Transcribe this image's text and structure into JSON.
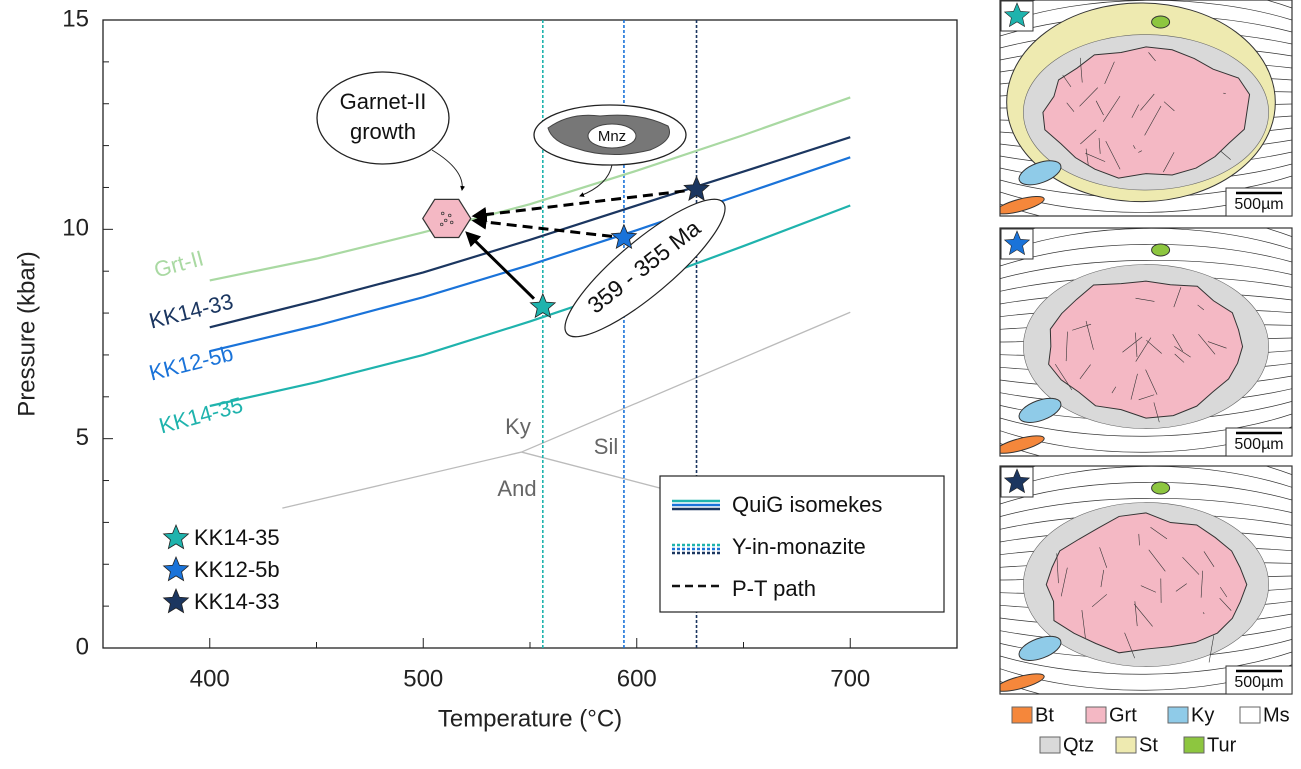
{
  "chart_data": {
    "type": "line",
    "xlabel": "Temperature (°C)",
    "ylabel": "Pressure (kbar)",
    "xlim": [
      350,
      750
    ],
    "ylim": [
      0,
      15
    ],
    "xticks": [
      400,
      500,
      600,
      700
    ],
    "yticks": [
      0,
      5,
      10,
      15
    ],
    "xminorticks": [
      450,
      550,
      650
    ],
    "yminorticks": [
      1,
      2,
      3,
      4,
      6,
      7,
      8,
      9,
      11,
      12,
      13,
      14
    ],
    "x": [
      400,
      450,
      500,
      550,
      600,
      650,
      700
    ],
    "series": [
      {
        "name": "Grt-II",
        "color": "#a9d9a2",
        "values": [
          8.78,
          9.3,
          9.93,
          10.6,
          11.4,
          12.25,
          13.15
        ]
      },
      {
        "name": "KK14-33",
        "color": "#1b3660",
        "values": [
          7.66,
          8.3,
          8.97,
          9.75,
          10.57,
          11.38,
          12.2
        ]
      },
      {
        "name": "KK12-5b",
        "color": "#1a73d9",
        "values": [
          7.09,
          7.7,
          8.38,
          9.15,
          9.98,
          10.85,
          11.72
        ]
      },
      {
        "name": "KK14-35",
        "color": "#1fb3ad",
        "values": [
          5.78,
          6.35,
          7.0,
          7.8,
          8.66,
          9.6,
          10.57
        ]
      }
    ],
    "samples": [
      {
        "name": "KK14-35",
        "color": "#1fb3ad",
        "T": 556,
        "P": 8.15
      },
      {
        "name": "KK12-5b",
        "color": "#1a73d9",
        "T": 594,
        "P": 9.8
      },
      {
        "name": "KK14-33",
        "color": "#1b3660",
        "T": 628,
        "P": 10.95
      }
    ],
    "garnet_ii": {
      "T": 511,
      "P": 10.26
    },
    "phase_boundaries": [
      {
        "x": [
          434,
          546
        ],
        "values": [
          3.34,
          4.68
        ]
      },
      {
        "x": [
          546,
          700
        ],
        "values": [
          4.68,
          8.02
        ]
      },
      {
        "x": [
          546,
          620
        ],
        "values": [
          4.68,
          3.7
        ]
      }
    ],
    "phase_labels": [
      "Ky",
      "Sil",
      "And"
    ],
    "garnet_note": [
      "Garnet-II",
      "growth"
    ],
    "mnz_label": "Mnz",
    "age_label": "359 - 355 Ma",
    "legend": [
      "QuiG isomekes",
      "Y-in-monazite",
      "P-T path"
    ]
  },
  "panels": [
    {
      "scale": "500µm"
    },
    {
      "scale": "500µm"
    },
    {
      "scale": "500µm"
    }
  ],
  "minerals": [
    {
      "name": "Bt",
      "color": "#f5873b"
    },
    {
      "name": "Grt",
      "color": "#f4b8c4"
    },
    {
      "name": "Ky",
      "color": "#8fcbe8"
    },
    {
      "name": "Ms",
      "color": "#ffffff"
    },
    {
      "name": "Qtz",
      "color": "#d9d9d9"
    },
    {
      "name": "St",
      "color": "#eeeab0"
    },
    {
      "name": "Tur",
      "color": "#8dc63f"
    }
  ]
}
